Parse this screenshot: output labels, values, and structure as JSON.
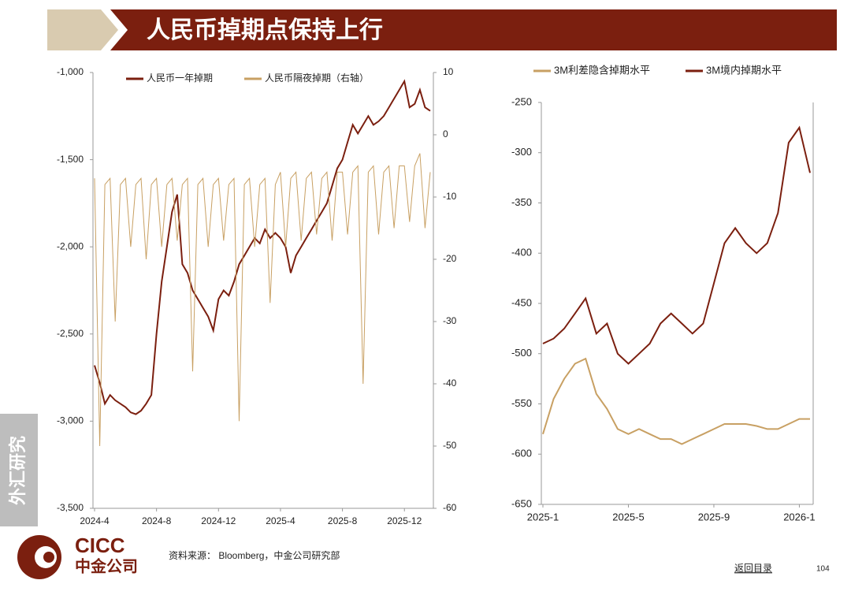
{
  "header": {
    "title": "人民币掉期点保持上行"
  },
  "side_tab": "外汇研究",
  "footer": {
    "source": "资料来源： Bloomberg，中金公司研究部",
    "logo_en": "CICC",
    "logo_cn": "中金公司",
    "back": "返回目录",
    "page": "104"
  },
  "chart_data": [
    {
      "type": "line",
      "x": [
        "2024-4",
        "2024-4",
        "2024-4",
        "2024-5",
        "2024-5",
        "2024-5",
        "2024-6",
        "2024-6",
        "2024-6",
        "2024-7",
        "2024-7",
        "2024-7",
        "2024-8",
        "2024-8",
        "2024-8",
        "2024-9",
        "2024-9",
        "2024-9",
        "2024-10",
        "2024-10",
        "2024-10",
        "2024-11",
        "2024-11",
        "2024-11",
        "2024-12",
        "2024-12",
        "2024-12",
        "2025-1",
        "2025-1",
        "2025-1",
        "2025-2",
        "2025-2",
        "2025-2",
        "2025-3",
        "2025-3",
        "2025-3",
        "2025-4",
        "2025-4",
        "2025-4",
        "2025-5",
        "2025-5",
        "2025-5",
        "2025-6",
        "2025-6",
        "2025-6",
        "2025-7",
        "2025-7",
        "2025-7",
        "2025-8",
        "2025-8",
        "2025-8",
        "2025-9",
        "2025-9",
        "2025-9",
        "2025-10",
        "2025-10",
        "2025-10",
        "2025-11",
        "2025-11",
        "2025-11",
        "2025-12",
        "2025-12",
        "2025-12",
        "2026-1",
        "2026-1",
        "2026-1"
      ],
      "xticks": [
        "2024-4",
        "2024-8",
        "2024-12",
        "2025-4",
        "2025-8",
        "2025-12"
      ],
      "ylim": [
        -3500,
        -1000
      ],
      "yticks": [
        {
          "value": -1000,
          "label": "-1,000"
        },
        {
          "value": -1500,
          "label": "-1,500"
        },
        {
          "value": -2000,
          "label": "-2,000"
        },
        {
          "value": -2500,
          "label": "-2,500"
        },
        {
          "value": -3000,
          "label": "-3,000"
        },
        {
          "value": -3500,
          "label": "-3,500"
        }
      ],
      "y2lim": [
        -60,
        10
      ],
      "y2ticks": [
        10,
        0,
        -10,
        -20,
        -30,
        -40,
        -50,
        -60
      ],
      "legend": "top",
      "series": [
        {
          "name": "人民币一年掉期",
          "color": "#7b1f0f",
          "values": [
            -2680,
            -2780,
            -2900,
            -2850,
            -2880,
            -2900,
            -2920,
            -2950,
            -2960,
            -2940,
            -2900,
            -2850,
            -2500,
            -2200,
            -2000,
            -1800,
            -1700,
            -2100,
            -2150,
            -2250,
            -2300,
            -2350,
            -2400,
            -2480,
            -2300,
            -2250,
            -2280,
            -2200,
            -2100,
            -2050,
            -2000,
            -1950,
            -1980,
            -1900,
            -1950,
            -1920,
            -1950,
            -2000,
            -2150,
            -2050,
            -2000,
            -1950,
            -1900,
            -1850,
            -1800,
            -1750,
            -1650,
            -1550,
            -1500,
            -1400,
            -1300,
            -1350,
            -1300,
            -1250,
            -1300,
            -1280,
            -1250,
            -1200,
            -1150,
            -1100,
            -1050,
            -1200,
            -1180,
            -1100,
            -1200,
            -1220
          ]
        },
        {
          "name": "人民币隔夜掉期（右轴）",
          "color": "#c8a063",
          "axis": "y2",
          "values": [
            -7,
            -50,
            -8,
            -7,
            -30,
            -8,
            -7,
            -18,
            -8,
            -7,
            -20,
            -8,
            -7,
            -18,
            -8,
            -7,
            -17,
            -8,
            -7,
            -38,
            -8,
            -7,
            -18,
            -8,
            -7,
            -17,
            -8,
            -7,
            -46,
            -8,
            -7,
            -18,
            -8,
            -7,
            -27,
            -8,
            -6,
            -18,
            -7,
            -6,
            -17,
            -7,
            -6,
            -16,
            -7,
            -6,
            -17,
            -6,
            -6,
            -16,
            -6,
            -5,
            -40,
            -6,
            -5,
            -16,
            -6,
            -5,
            -15,
            -5,
            -5,
            -14,
            -5,
            -3,
            -15,
            -6
          ]
        }
      ]
    },
    {
      "type": "line",
      "x": [
        "2025-1",
        "2025-1",
        "2025-2",
        "2025-2",
        "2025-3",
        "2025-3",
        "2025-4",
        "2025-4",
        "2025-5",
        "2025-5",
        "2025-6",
        "2025-6",
        "2025-7",
        "2025-7",
        "2025-8",
        "2025-8",
        "2025-9",
        "2025-9",
        "2025-10",
        "2025-10",
        "2025-11",
        "2025-11",
        "2025-12",
        "2025-12",
        "2026-1",
        "2026-1"
      ],
      "xticks": [
        "2025-1",
        "2025-5",
        "2025-9",
        "2026-1"
      ],
      "ylim": [
        -650,
        -250
      ],
      "yticks": [
        -250,
        -300,
        -350,
        -400,
        -450,
        -500,
        -550,
        -600,
        -650
      ],
      "legend": "top",
      "series": [
        {
          "name": "3M利差隐含掉期水平",
          "color": "#c8a063",
          "values": [
            -580,
            -545,
            -525,
            -510,
            -505,
            -540,
            -555,
            -575,
            -580,
            -575,
            -580,
            -585,
            -585,
            -590,
            -585,
            -580,
            -575,
            -570,
            -570,
            -570,
            -572,
            -575,
            -575,
            -570,
            -565,
            -565
          ]
        },
        {
          "name": "3M境内掉期水平",
          "color": "#7b1f0f",
          "values": [
            -490,
            -485,
            -475,
            -460,
            -445,
            -480,
            -470,
            -500,
            -510,
            -500,
            -490,
            -470,
            -460,
            -470,
            -480,
            -470,
            -430,
            -390,
            -375,
            -390,
            -400,
            -390,
            -360,
            -290,
            -275,
            -320
          ]
        }
      ]
    }
  ]
}
